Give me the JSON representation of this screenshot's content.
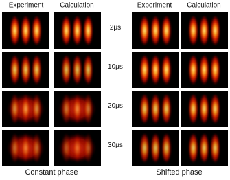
{
  "groups": [
    {
      "columns": [
        "Experiment",
        "Calculation"
      ],
      "caption": "Constant phase"
    },
    {
      "columns": [
        "Experiment",
        "Calculation"
      ],
      "caption": "Shifted phase"
    }
  ],
  "times": [
    "2μs",
    "10μs",
    "20μs",
    "30μs"
  ]
}
